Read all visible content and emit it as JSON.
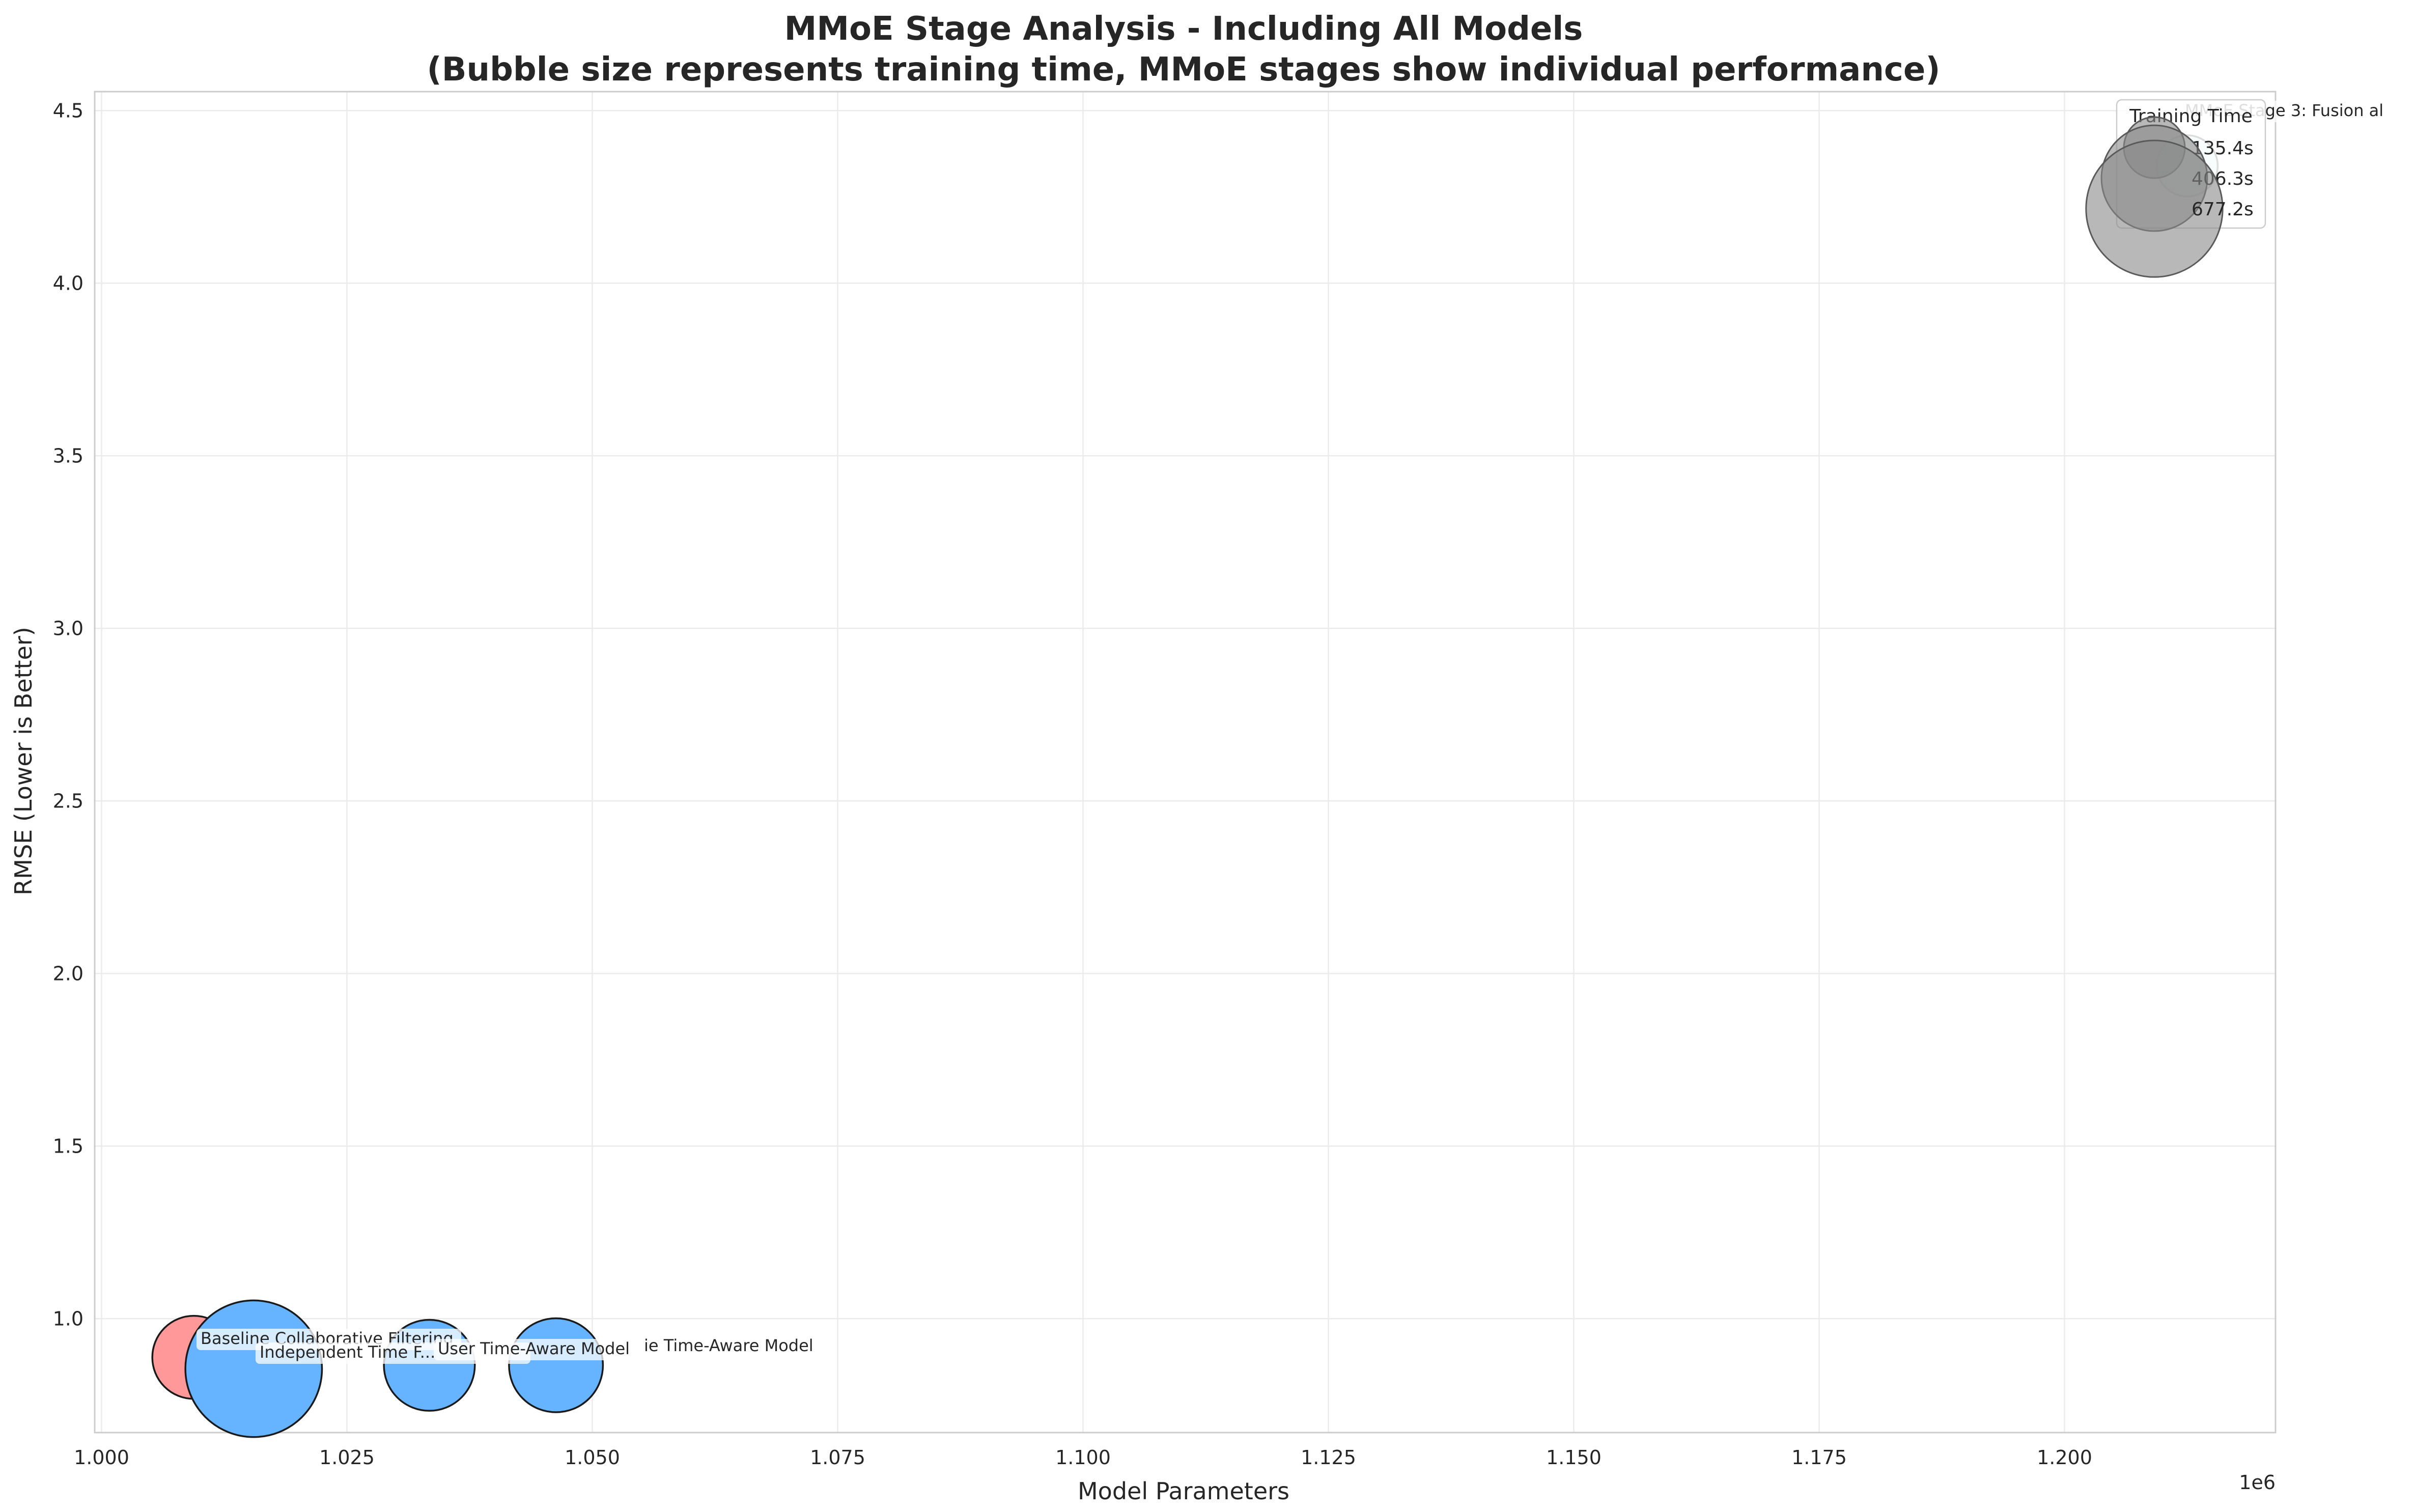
{
  "chart_data": {
    "type": "scatter",
    "title": "MMoE Stage Analysis - Including All Models",
    "subtitle": "(Bubble size represents training time, MMoE stages show individual performance)",
    "xlabel": "Model Parameters",
    "ylabel": "RMSE (Lower is Better)",
    "x_offset_label": "1e6",
    "xlim": [
      0.9993,
      1.2215
    ],
    "ylim": [
      0.67,
      4.555
    ],
    "x_ticks": [
      1.0,
      1.025,
      1.05,
      1.075,
      1.1,
      1.125,
      1.15,
      1.175,
      1.2
    ],
    "x_tick_labels": [
      "1.000",
      "1.025",
      "1.050",
      "1.075",
      "1.100",
      "1.125",
      "1.150",
      "1.175",
      "1.200"
    ],
    "y_ticks": [
      1.0,
      1.5,
      2.0,
      2.5,
      3.0,
      3.5,
      4.0,
      4.5
    ],
    "y_tick_labels": [
      "1.0",
      "1.5",
      "2.0",
      "2.5",
      "3.0",
      "3.5",
      "4.0",
      "4.5"
    ],
    "grid": true,
    "points": [
      {
        "label": "Baseline Collaborative Filtering",
        "x": 1.0094,
        "y": 0.888,
        "training_time": 250,
        "color": "#ff9999"
      },
      {
        "label": "Independent Time Feature Model",
        "x": 1.0155,
        "y": 0.855,
        "training_time": 677.2,
        "color": "#66b3ff"
      },
      {
        "label": "User Time-Aware Model",
        "x": 1.0334,
        "y": 0.865,
        "training_time": 300,
        "color": "#66b3ff"
      },
      {
        "label": "Movie Time-Aware Model",
        "x": 1.0463,
        "y": 0.865,
        "training_time": 320,
        "color": "#66b3ff"
      },
      {
        "label": "MMoE Stage 3: Fusion",
        "x": 1.2125,
        "y": 4.34,
        "training_time": 135.4,
        "color": "#c6e7ec"
      }
    ],
    "annotation_texts": {
      "baseline": "Baseline Collaborative Filtering",
      "independent": "Independent Time F...",
      "user": "User Time-Aware Model",
      "movie": "ie Time-Aware Model",
      "mmoe": "MMoE Stage 3: Fusion al"
    },
    "legend": {
      "title": "Training Time",
      "placement": "top-right",
      "entries": [
        {
          "label": "135.4s",
          "value": 135.4
        },
        {
          "label": "406.3s",
          "value": 406.3
        },
        {
          "label": "677.2s",
          "value": 677.2
        }
      ]
    }
  }
}
